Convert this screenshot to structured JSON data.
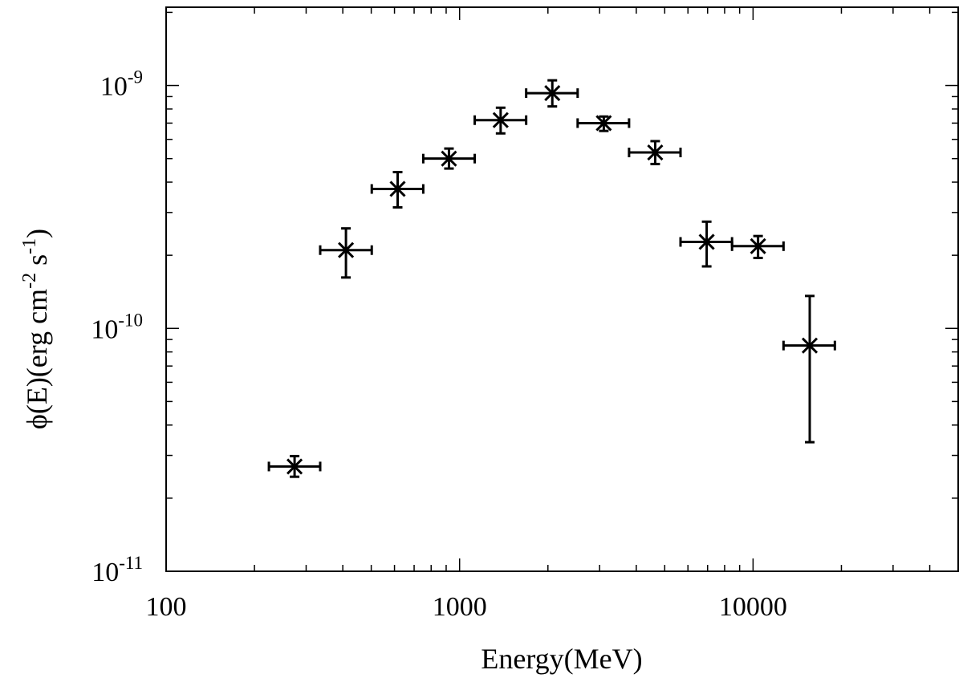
{
  "chart_data": {
    "type": "scatter",
    "title": "",
    "xlabel": "Energy(MeV)",
    "ylabel": "ϕ(E)(erg cm⁻² s⁻¹)",
    "ylabel_parts": {
      "prefix": "ϕ(E)(erg cm",
      "exp1": "-2",
      "mid": " s",
      "exp2": "-1",
      "suffix": ")"
    },
    "x_scale": "log",
    "y_scale": "log",
    "xlim": [
      100,
      50000
    ],
    "ylim": [
      1e-11,
      2.1e-09
    ],
    "xticks": [
      {
        "value": 100,
        "label": "100"
      },
      {
        "value": 1000,
        "label": "1000"
      },
      {
        "value": 10000,
        "label": "10000"
      }
    ],
    "yticks": [
      {
        "value": 1e-11,
        "base": "10",
        "exp": "-11"
      },
      {
        "value": 1e-10,
        "base": "10",
        "exp": "-10"
      },
      {
        "value": 1e-09,
        "base": "10",
        "exp": "-9"
      }
    ],
    "grid": false,
    "legend": "none",
    "series": [
      {
        "marker": "star",
        "color": "#000000",
        "points": [
          {
            "x": 274,
            "xlo": 224,
            "xhi": 335,
            "y": 2.7e-11,
            "ylo": 2.45e-11,
            "yhi": 2.98e-11
          },
          {
            "x": 410,
            "xlo": 335,
            "xhi": 502,
            "y": 2.1e-10,
            "ylo": 1.62e-10,
            "yhi": 2.58e-10
          },
          {
            "x": 615,
            "xlo": 502,
            "xhi": 752,
            "y": 3.75e-10,
            "ylo": 3.15e-10,
            "yhi": 4.4e-10
          },
          {
            "x": 920,
            "xlo": 752,
            "xhi": 1126,
            "y": 5e-10,
            "ylo": 4.55e-10,
            "yhi": 5.5e-10
          },
          {
            "x": 1380,
            "xlo": 1126,
            "xhi": 1686,
            "y": 7.2e-10,
            "ylo": 6.35e-10,
            "yhi": 8.1e-10
          },
          {
            "x": 2070,
            "xlo": 1686,
            "xhi": 2525,
            "y": 9.3e-10,
            "ylo": 8.2e-10,
            "yhi": 1.05e-09
          },
          {
            "x": 3100,
            "xlo": 2525,
            "xhi": 3780,
            "y": 7e-10,
            "ylo": 6.5e-10,
            "yhi": 7.45e-10
          },
          {
            "x": 4640,
            "xlo": 3780,
            "xhi": 5660,
            "y": 5.3e-10,
            "ylo": 4.75e-10,
            "yhi": 5.9e-10
          },
          {
            "x": 6950,
            "xlo": 5660,
            "xhi": 8480,
            "y": 2.27e-10,
            "ylo": 1.8e-10,
            "yhi": 2.75e-10
          },
          {
            "x": 10400,
            "xlo": 8480,
            "xhi": 12700,
            "y": 2.18e-10,
            "ylo": 1.95e-10,
            "yhi": 2.4e-10
          },
          {
            "x": 15600,
            "xlo": 12700,
            "xhi": 19000,
            "y": 8.5e-11,
            "ylo": 3.4e-11,
            "yhi": 1.36e-10
          }
        ]
      }
    ]
  }
}
